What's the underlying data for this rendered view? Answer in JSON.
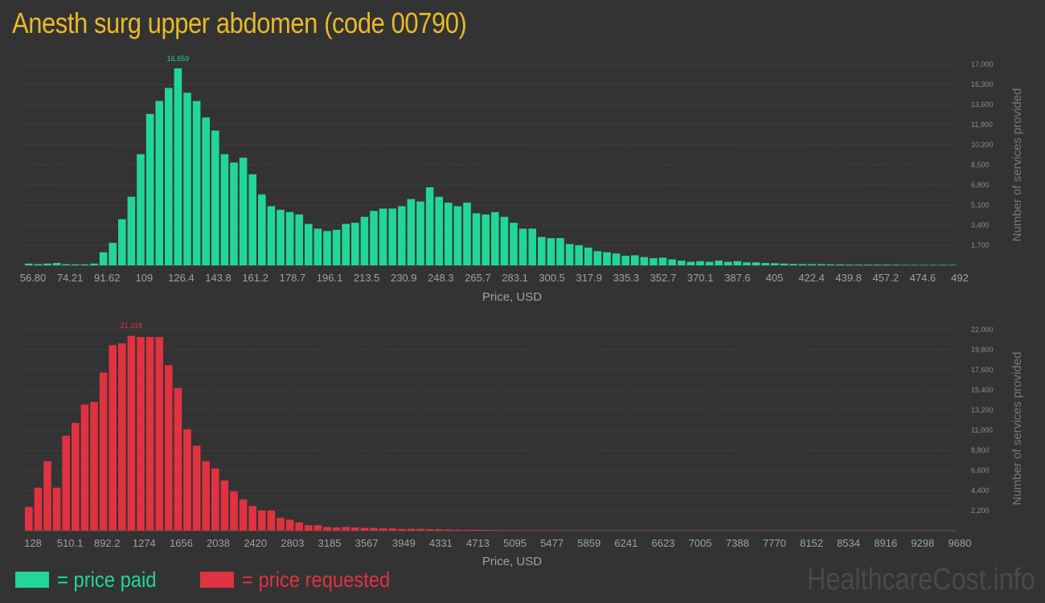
{
  "page": {
    "title": "Anesth surg upper abdomen (code 00790)",
    "watermark": "HealthcareCost.info"
  },
  "legend": [
    {
      "swatch_color": "#22d697",
      "label": "= price paid"
    },
    {
      "swatch_color": "#e03241",
      "label": "= price requested"
    }
  ],
  "chart_data": [
    {
      "type": "bar",
      "title": "",
      "xlabel": "Price, USD",
      "ylabel": "Number of services provided",
      "bar_color": "#22d697",
      "ylim": [
        0,
        17000
      ],
      "y_ticks": [
        1700,
        3400,
        5100,
        6800,
        8500,
        10200,
        11900,
        13600,
        15300,
        17000
      ],
      "y_tick_labels": [
        "1,700",
        "3,400",
        "5,100",
        "6,800",
        "8,500",
        "10,200",
        "11,900",
        "13,600",
        "15,300",
        "17,000"
      ],
      "x_min": 56.8,
      "x_max": 492,
      "x_tick_values": [
        56.8,
        74.21,
        91.62,
        109,
        126.4,
        143.8,
        161.2,
        178.7,
        196.1,
        213.5,
        230.9,
        248.3,
        265.7,
        283.1,
        300.5,
        317.9,
        335.3,
        352.7,
        370.1,
        387.6,
        405,
        422.4,
        439.8,
        457.2,
        474.6,
        492
      ],
      "x_tick_labels": [
        "56.80",
        "74.21",
        "91.62",
        "109",
        "126.4",
        "143.8",
        "161.2",
        "178.7",
        "196.1",
        "213.5",
        "230.9",
        "248.3",
        "265.7",
        "283.1",
        "300.5",
        "317.9",
        "335.3",
        "352.7",
        "370.1",
        "387.6",
        "405",
        "422.4",
        "439.8",
        "457.2",
        "474.6",
        "492"
      ],
      "values": [
        150,
        100,
        150,
        200,
        100,
        80,
        80,
        150,
        1100,
        1900,
        3900,
        5800,
        9400,
        12800,
        13900,
        15000,
        16659,
        14600,
        13900,
        12500,
        11400,
        9400,
        8700,
        9100,
        7700,
        6000,
        5000,
        4700,
        4500,
        4300,
        3500,
        3100,
        2900,
        3000,
        3500,
        3600,
        4100,
        4600,
        4800,
        4800,
        5000,
        5600,
        5400,
        6600,
        5800,
        5300,
        5000,
        5300,
        4400,
        4300,
        4500,
        4100,
        3600,
        3100,
        3100,
        2400,
        2300,
        2300,
        1800,
        1700,
        1500,
        1200,
        1100,
        1000,
        800,
        850,
        700,
        600,
        650,
        500,
        400,
        300,
        350,
        300,
        400,
        300,
        350,
        250,
        250,
        200,
        180,
        150,
        120,
        100,
        100,
        100,
        80,
        80,
        60,
        60,
        60,
        60,
        60,
        50,
        40,
        40,
        40,
        40,
        40,
        40
      ],
      "peak_label": "16,659",
      "peak_index": 16
    },
    {
      "type": "bar",
      "title": "",
      "xlabel": "Price, USD",
      "ylabel": "Number of services provided",
      "bar_color": "#e03241",
      "ylim": [
        0,
        22000
      ],
      "y_ticks": [
        2200,
        4400,
        6600,
        8800,
        11000,
        13200,
        15400,
        17600,
        19800,
        22000
      ],
      "y_tick_labels": [
        "2,200",
        "4,400",
        "6,600",
        "8,800",
        "11,000",
        "13,200",
        "15,400",
        "17,600",
        "19,800",
        "22,000"
      ],
      "x_min": 128,
      "x_max": 9680,
      "x_tick_values": [
        128,
        510.1,
        892.2,
        1274,
        1656,
        2038,
        2420,
        2803,
        3185,
        3567,
        3949,
        4331,
        4713,
        5095,
        5477,
        5859,
        6241,
        6623,
        7005,
        7388,
        7770,
        8152,
        8534,
        8916,
        9298,
        9680
      ],
      "x_tick_labels": [
        "128",
        "510.1",
        "892.2",
        "1274",
        "1656",
        "2038",
        "2420",
        "2803",
        "3185",
        "3567",
        "3949",
        "4331",
        "4713",
        "5095",
        "5477",
        "5859",
        "6241",
        "6623",
        "7005",
        "7388",
        "7770",
        "8152",
        "8534",
        "8916",
        "9298",
        "9680"
      ],
      "values": [
        2600,
        4700,
        7600,
        4700,
        10400,
        11800,
        13800,
        14100,
        17300,
        20300,
        20500,
        21318,
        21200,
        21200,
        21200,
        18100,
        15600,
        11100,
        9300,
        7600,
        6800,
        5500,
        4300,
        3400,
        2700,
        2200,
        2200,
        1400,
        1200,
        900,
        600,
        600,
        400,
        350,
        400,
        350,
        300,
        300,
        250,
        250,
        200,
        200,
        200,
        150,
        150,
        120,
        100,
        100,
        100,
        80,
        80,
        60,
        60,
        50,
        40,
        40,
        40,
        30,
        30,
        30,
        30,
        30,
        30,
        30,
        30,
        30,
        30,
        30,
        30,
        30,
        30,
        30,
        30,
        30,
        30,
        30,
        30,
        30,
        30,
        30,
        30,
        30,
        30,
        30,
        30,
        30,
        30,
        30,
        30,
        30,
        30,
        30,
        30,
        30,
        30,
        30,
        30,
        30,
        30,
        30
      ],
      "peak_label": "21,318",
      "peak_index": 11
    }
  ]
}
